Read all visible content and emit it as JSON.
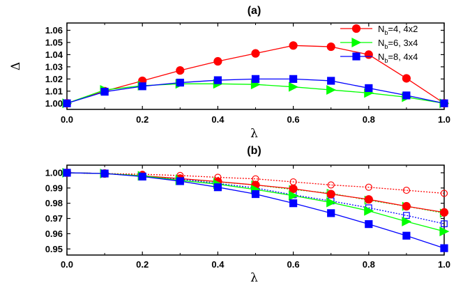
{
  "chart_data": [
    {
      "type": "line",
      "title": "(a)",
      "xlabel": "λ",
      "ylabel": "Δ",
      "xlim": [
        0.0,
        1.0
      ],
      "ylim": [
        0.995,
        1.066
      ],
      "xticks": [
        0.0,
        0.2,
        0.4,
        0.6,
        0.8,
        1.0
      ],
      "xtick_labels": [
        "0.0",
        "0.2",
        "0.4",
        "0.6",
        "0.8",
        "1.0"
      ],
      "yticks": [
        1.0,
        1.01,
        1.02,
        1.03,
        1.04,
        1.05,
        1.06
      ],
      "ytick_labels": [
        "1.00",
        "1.01",
        "1.02",
        "1.03",
        "1.04",
        "1.05",
        "1.06"
      ],
      "legend_position": "top-right",
      "x": [
        0.0,
        0.1,
        0.2,
        0.3,
        0.4,
        0.5,
        0.6,
        0.7,
        0.8,
        0.9,
        1.0
      ],
      "series": [
        {
          "name_main": "N",
          "name_sub": "b",
          "name_rest": "=4, 4x2",
          "color": "#ff0000",
          "marker": "circle",
          "values": [
            1.0,
            1.01,
            1.0185,
            1.027,
            1.0345,
            1.041,
            1.0475,
            1.0465,
            1.04,
            1.0205,
            1.0
          ]
        },
        {
          "name_main": "N",
          "name_sub": "b",
          "name_rest": "=6, 3x4",
          "color": "#00ff00",
          "marker": "triangle-right",
          "values": [
            1.0,
            1.011,
            1.0145,
            1.016,
            1.016,
            1.0155,
            1.0135,
            1.011,
            1.0085,
            1.005,
            1.0
          ]
        },
        {
          "name_main": "N",
          "name_sub": "b",
          "name_rest": "=8, 4x4",
          "color": "#0000ff",
          "marker": "square",
          "values": [
            1.0,
            1.0095,
            1.014,
            1.017,
            1.019,
            1.02,
            1.02,
            1.0185,
            1.0125,
            1.0065,
            1.0
          ]
        }
      ]
    },
    {
      "type": "line",
      "title": "(b)",
      "xlabel": "λ",
      "ylabel": "",
      "xlim": [
        0.0,
        1.0
      ],
      "ylim": [
        0.946,
        1.005
      ],
      "xticks": [
        0.0,
        0.2,
        0.4,
        0.6,
        0.8,
        1.0
      ],
      "xtick_labels": [
        "0.0",
        "0.2",
        "0.4",
        "0.6",
        "0.8",
        "1.0"
      ],
      "yticks": [
        0.95,
        0.96,
        0.97,
        0.98,
        0.99,
        1.0
      ],
      "ytick_labels": [
        "0.95",
        "0.96",
        "0.97",
        "0.98",
        "0.99",
        "1.00"
      ],
      "x": [
        0.0,
        0.1,
        0.2,
        0.3,
        0.4,
        0.5,
        0.6,
        0.7,
        0.8,
        0.9,
        1.0
      ],
      "series": [
        {
          "color": "#ff0000",
          "marker": "circle",
          "filled": false,
          "dashed": true,
          "values": [
            1.0,
            0.9995,
            0.999,
            0.9982,
            0.997,
            0.996,
            0.994,
            0.992,
            0.9905,
            0.9885,
            0.9865
          ]
        },
        {
          "color": "#00ff00",
          "marker": "triangle-right",
          "filled": false,
          "dashed": true,
          "values": [
            1.0,
            0.9995,
            0.998,
            0.996,
            0.994,
            0.992,
            0.989,
            0.9865,
            0.982,
            0.978,
            0.9735
          ]
        },
        {
          "color": "#0000ff",
          "marker": "square",
          "filled": false,
          "dashed": true,
          "values": [
            1.0,
            0.9995,
            0.9978,
            0.9958,
            0.993,
            0.99,
            0.9855,
            0.9815,
            0.977,
            0.972,
            0.9665
          ]
        },
        {
          "color": "#ff0000",
          "marker": "circle",
          "filled": true,
          "dashed": false,
          "values": [
            1.0,
            0.9995,
            0.998,
            0.9962,
            0.9942,
            0.992,
            0.9895,
            0.986,
            0.9825,
            0.978,
            0.974
          ]
        },
        {
          "color": "#00ff00",
          "marker": "triangle-right",
          "filled": true,
          "dashed": false,
          "values": [
            1.0,
            0.9995,
            0.998,
            0.995,
            0.9925,
            0.989,
            0.985,
            0.9805,
            0.975,
            0.968,
            0.9615
          ]
        },
        {
          "color": "#0000ff",
          "marker": "square",
          "filled": true,
          "dashed": false,
          "values": [
            1.0,
            0.9995,
            0.9975,
            0.9945,
            0.9905,
            0.986,
            0.98,
            0.9735,
            0.9663,
            0.9587,
            0.9505
          ]
        }
      ]
    }
  ]
}
